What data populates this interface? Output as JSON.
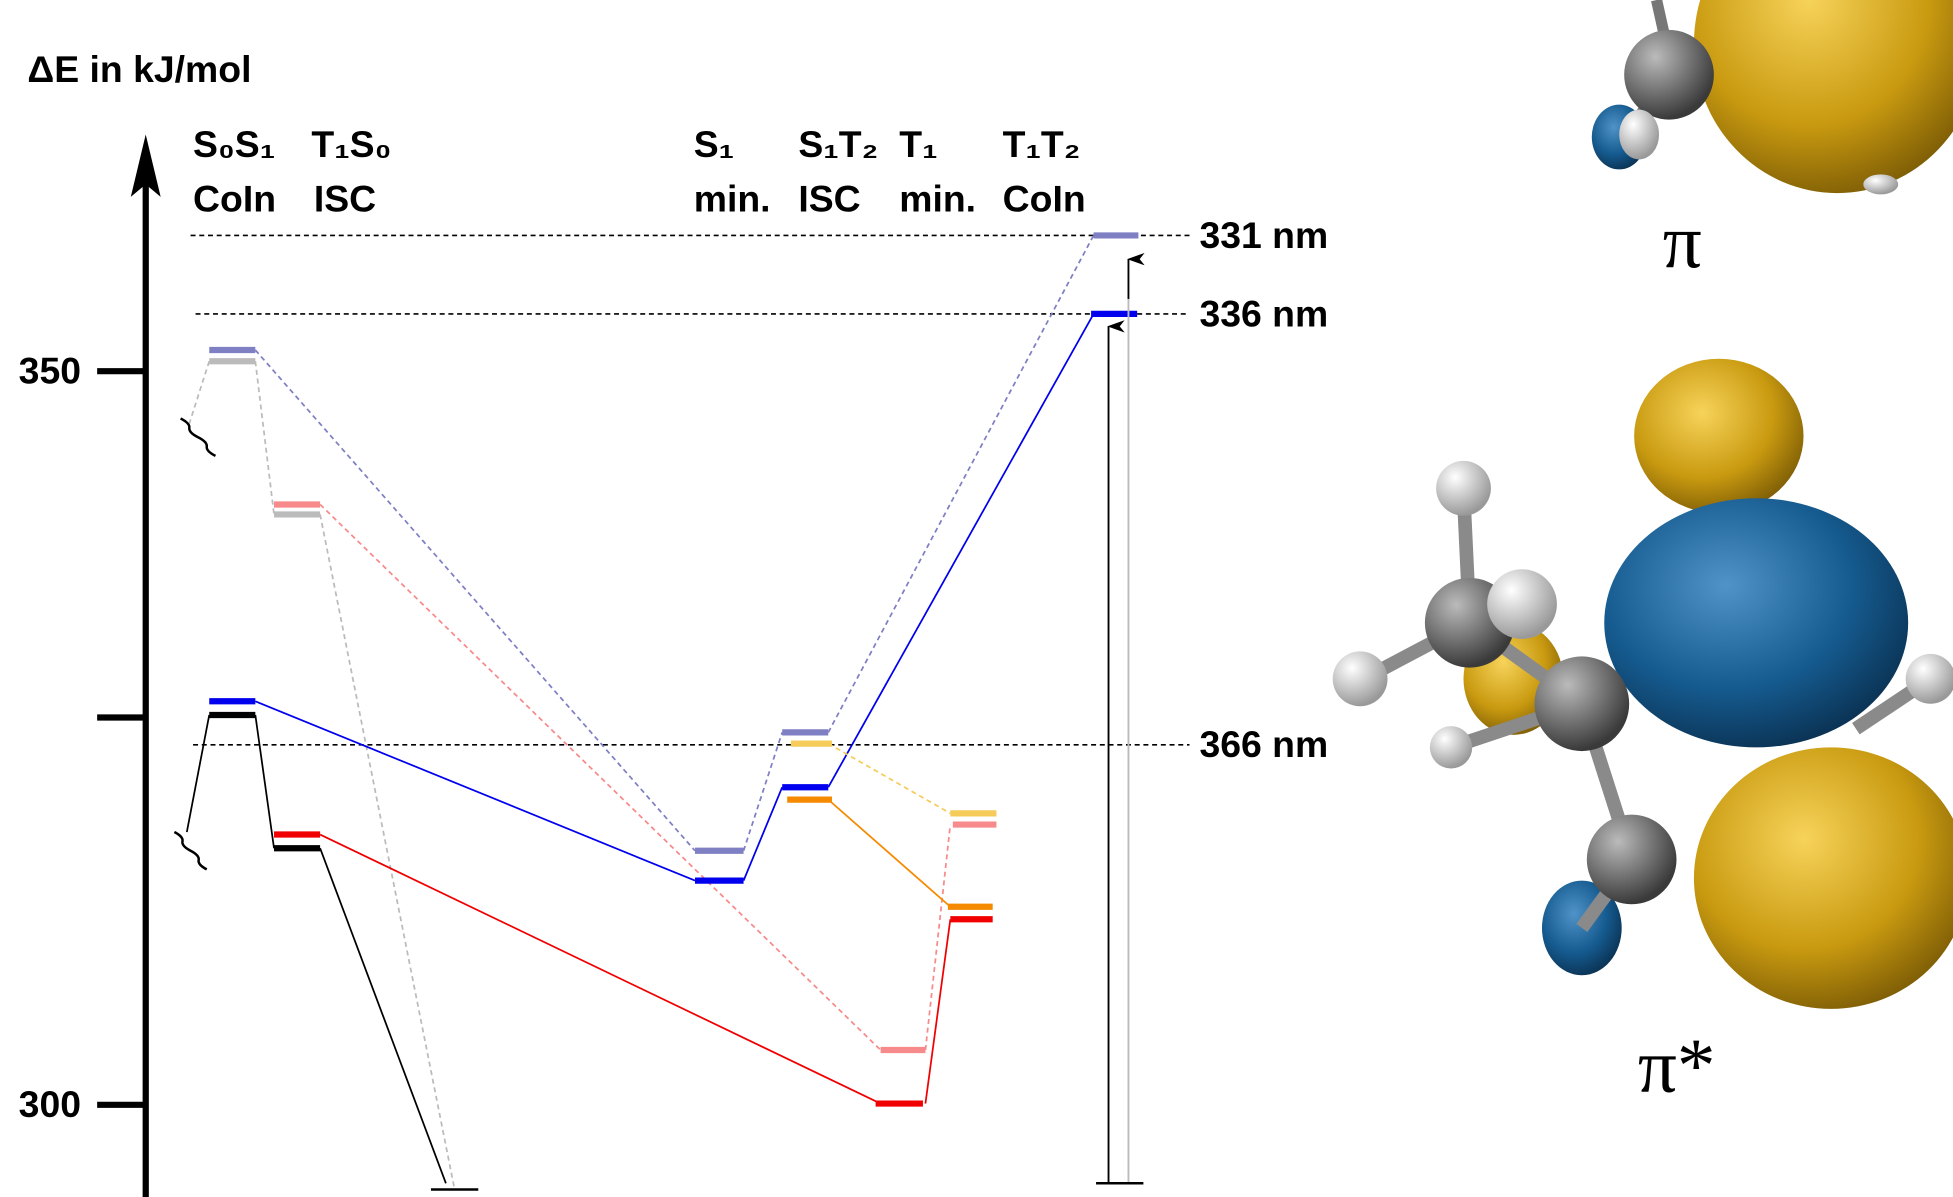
{
  "axis": {
    "title": "ΔE in kJ/mol",
    "ticks": [
      "350",
      "300"
    ]
  },
  "columns": [
    {
      "state": "S₀S₁",
      "kind": "CoIn"
    },
    {
      "state": "T₁S₀",
      "kind": "ISC"
    },
    {
      "state": "S₁",
      "kind": "min."
    },
    {
      "state": "S₁T₂",
      "kind": "ISC"
    },
    {
      "state": "T₁",
      "kind": "min."
    },
    {
      "state": "T₁T₂",
      "kind": "CoIn"
    }
  ],
  "wavelengths": [
    "331 nm",
    "336 nm",
    "366 nm"
  ],
  "orbitals": [
    "π",
    "π*"
  ]
}
